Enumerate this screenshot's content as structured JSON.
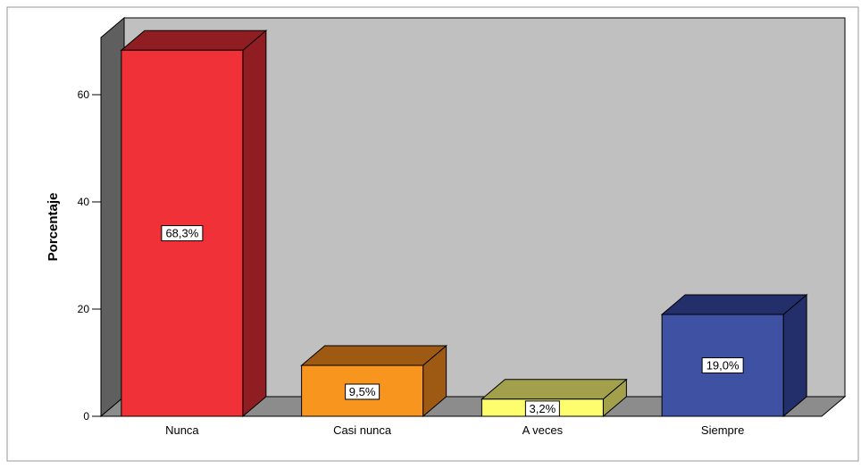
{
  "chart_data": {
    "type": "bar",
    "ylabel": "Porcentaje",
    "categories": [
      "Nunca",
      "Casi nunca",
      "A veces",
      "Siempre"
    ],
    "values": [
      68.3,
      9.5,
      3.2,
      19.0
    ],
    "data_labels": [
      "68,3%",
      "9,5%",
      "3,2%",
      "19,0%"
    ],
    "yticks": [
      0,
      20,
      40,
      60
    ],
    "ylim": [
      0,
      70
    ],
    "grid": false,
    "style": "3d",
    "bar_colors": [
      {
        "front": "#f03238",
        "top": "#8f1d22",
        "side": "#8f1d22"
      },
      {
        "front": "#f7951e",
        "top": "#9e5a12",
        "side": "#9e5a12"
      },
      {
        "front": "#fdfd6e",
        "top": "#a2a04a",
        "side": "#a2a04a"
      },
      {
        "front": "#3e51a3",
        "top": "#222f6a",
        "side": "#222f6a"
      }
    ],
    "plot_background": "#c0c0c0",
    "floor_color": "#8c8c8c",
    "wall_side_color": "#5f5f5f"
  }
}
